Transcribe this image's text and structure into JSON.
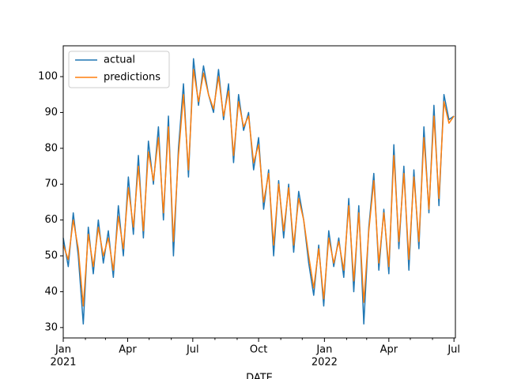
{
  "chart_data": {
    "type": "line",
    "x_label": "DATE",
    "x": [
      "2021-01-01",
      "2021-01-08",
      "2021-01-15",
      "2021-01-22",
      "2021-01-29",
      "2021-02-05",
      "2021-02-12",
      "2021-02-19",
      "2021-02-26",
      "2021-03-05",
      "2021-03-12",
      "2021-03-19",
      "2021-03-26",
      "2021-04-02",
      "2021-04-09",
      "2021-04-16",
      "2021-04-23",
      "2021-04-30",
      "2021-05-07",
      "2021-05-14",
      "2021-05-21",
      "2021-05-28",
      "2021-06-04",
      "2021-06-11",
      "2021-06-18",
      "2021-06-25",
      "2021-07-02",
      "2021-07-09",
      "2021-07-16",
      "2021-07-23",
      "2021-07-30",
      "2021-08-06",
      "2021-08-13",
      "2021-08-20",
      "2021-08-27",
      "2021-09-03",
      "2021-09-10",
      "2021-09-17",
      "2021-09-24",
      "2021-10-01",
      "2021-10-08",
      "2021-10-15",
      "2021-10-22",
      "2021-10-29",
      "2021-11-05",
      "2021-11-12",
      "2021-11-19",
      "2021-11-26",
      "2021-12-03",
      "2021-12-10",
      "2021-12-17",
      "2021-12-24",
      "2021-12-31",
      "2022-01-07",
      "2022-01-14",
      "2022-01-21",
      "2022-01-28",
      "2022-02-04",
      "2022-02-11",
      "2022-02-18",
      "2022-02-25",
      "2022-03-04",
      "2022-03-11",
      "2022-03-18",
      "2022-03-25",
      "2022-04-01",
      "2022-04-08",
      "2022-04-15",
      "2022-04-22",
      "2022-04-29",
      "2022-05-06",
      "2022-05-13",
      "2022-05-20",
      "2022-05-27",
      "2022-06-03",
      "2022-06-10",
      "2022-06-17",
      "2022-06-24",
      "2022-07-01"
    ],
    "series": [
      {
        "name": "actual",
        "color": "#1f77b4",
        "values": [
          55,
          47,
          62,
          50,
          31,
          58,
          45,
          60,
          48,
          57,
          44,
          64,
          50,
          72,
          56,
          78,
          55,
          82,
          70,
          86,
          60,
          89,
          50,
          80,
          98,
          72,
          105,
          92,
          103,
          95,
          90,
          102,
          88,
          98,
          76,
          95,
          85,
          90,
          74,
          83,
          63,
          74,
          50,
          71,
          55,
          70,
          51,
          68,
          60,
          48,
          39,
          53,
          36,
          57,
          47,
          55,
          44,
          66,
          40,
          64,
          31,
          58,
          73,
          46,
          63,
          45,
          81,
          52,
          75,
          46,
          74,
          52,
          86,
          62,
          92,
          64,
          95,
          88,
          89
        ]
      },
      {
        "name": "predictions",
        "color": "#ff7f0e",
        "values": [
          53,
          49,
          60,
          52,
          36,
          56,
          47,
          58,
          50,
          55,
          46,
          61,
          52,
          69,
          58,
          75,
          57,
          79,
          71,
          83,
          62,
          86,
          54,
          78,
          95,
          74,
          102,
          93,
          101,
          95,
          91,
          100,
          89,
          96,
          78,
          93,
          86,
          89,
          76,
          81,
          65,
          73,
          53,
          70,
          57,
          69,
          53,
          66,
          60,
          50,
          41,
          52,
          38,
          55,
          48,
          54,
          46,
          64,
          43,
          62,
          37,
          57,
          71,
          48,
          62,
          47,
          78,
          54,
          73,
          49,
          72,
          54,
          83,
          63,
          89,
          66,
          93,
          87,
          89
        ]
      }
    ],
    "xlim": [
      "2021-01-01",
      "2022-07-03"
    ],
    "xticks": [
      {
        "value": "2021-01-01",
        "label": "Jan"
      },
      {
        "value": "2021-04-01",
        "label": "Apr"
      },
      {
        "value": "2021-07-01",
        "label": "Jul"
      },
      {
        "value": "2021-10-01",
        "label": "Oct"
      },
      {
        "value": "2022-01-01",
        "label": "Jan"
      },
      {
        "value": "2022-04-01",
        "label": "Apr"
      },
      {
        "value": "2022-07-01",
        "label": "Jul"
      }
    ],
    "xticks_year": [
      {
        "value": "2021-01-01",
        "label": "2021"
      },
      {
        "value": "2022-01-01",
        "label": "2022"
      }
    ],
    "xminorticks": [
      "2021-02-01",
      "2021-03-01",
      "2021-05-01",
      "2021-06-01",
      "2021-08-01",
      "2021-09-01",
      "2021-11-01",
      "2021-12-01",
      "2022-02-01",
      "2022-03-01",
      "2022-05-01",
      "2022-06-01"
    ],
    "ylim": [
      27.1,
      108.6
    ],
    "yticks": [
      30,
      40,
      50,
      60,
      70,
      80,
      90,
      100
    ],
    "legend": "upper left"
  }
}
